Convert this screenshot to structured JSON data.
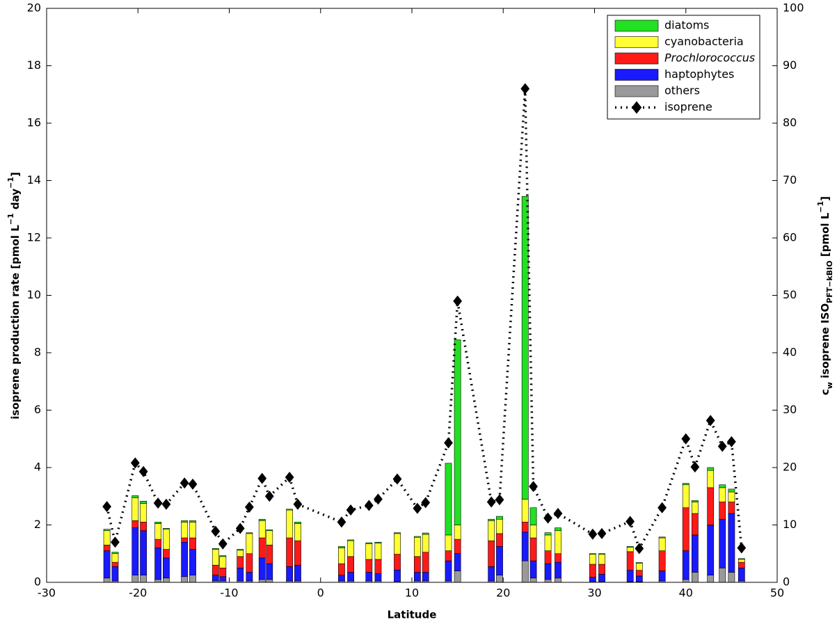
{
  "chart_data": {
    "type": "bar",
    "stacked": true,
    "xlabel": "Latitude",
    "ylabel": [
      "isoprene production rate [pmol L",
      "−1",
      " day",
      "−1",
      "]"
    ],
    "y2label": [
      "c",
      "w",
      " isoprene ISO",
      "PFT−kBIO",
      "   [pmol L",
      "−1",
      "]"
    ],
    "xlim": [
      -30,
      50
    ],
    "xticks": [
      -30,
      -20,
      -10,
      0,
      10,
      20,
      30,
      40,
      50
    ],
    "ylim": [
      0,
      20
    ],
    "yticks": [
      0,
      2,
      4,
      6,
      8,
      10,
      12,
      14,
      16,
      18,
      20
    ],
    "y2lim": [
      0,
      100
    ],
    "y2ticks": [
      0,
      10,
      20,
      30,
      40,
      50,
      60,
      70,
      80,
      90,
      100
    ],
    "legend": "upper right",
    "x": [
      -23.4,
      -22.5,
      -20.3,
      -19.4,
      -17.8,
      -16.9,
      -14.9,
      -14.0,
      -11.5,
      -10.7,
      -8.8,
      -7.8,
      -6.4,
      -5.6,
      -3.4,
      -2.5,
      2.3,
      3.3,
      5.3,
      6.3,
      8.4,
      10.6,
      11.5,
      14.0,
      15.0,
      18.7,
      19.6,
      22.4,
      23.3,
      24.9,
      26.0,
      29.8,
      30.8,
      33.9,
      34.9,
      37.4,
      40.0,
      41.0,
      42.7,
      44.0,
      45.0,
      46.1
    ],
    "series": [
      {
        "name": "diatoms",
        "color": "#22e022",
        "values": [
          0.05,
          0.05,
          0.07,
          0.08,
          0.05,
          0.03,
          0.05,
          0.05,
          0.03,
          0.03,
          0.03,
          0.03,
          0.05,
          0.03,
          0.03,
          0.05,
          0.05,
          0.03,
          0.03,
          0.03,
          0.03,
          0.03,
          0.05,
          2.5,
          6.45,
          0.05,
          0.1,
          10.55,
          0.6,
          0.08,
          0.1,
          0.02,
          0.02,
          0.03,
          0.02,
          0.03,
          0.05,
          0.05,
          0.1,
          0.1,
          0.1,
          0.03
        ]
      },
      {
        "name": "cyanobacteria",
        "color": "#ffff33",
        "values": [
          0.5,
          0.3,
          0.8,
          0.65,
          0.55,
          0.7,
          0.55,
          0.55,
          0.55,
          0.4,
          0.22,
          0.7,
          0.6,
          0.5,
          0.97,
          0.6,
          0.55,
          0.55,
          0.55,
          0.57,
          0.72,
          0.67,
          0.62,
          0.55,
          0.5,
          0.7,
          0.5,
          0.8,
          0.45,
          0.55,
          0.8,
          0.35,
          0.35,
          0.15,
          0.25,
          0.45,
          0.8,
          0.4,
          0.6,
          0.5,
          0.35,
          0.1
        ]
      },
      {
        "name": "Prochlorococcus",
        "color": "#ff1a1a",
        "italic": true,
        "values": [
          0.2,
          0.15,
          0.25,
          0.3,
          0.3,
          0.3,
          0.15,
          0.4,
          0.35,
          0.3,
          0.4,
          0.65,
          0.7,
          0.65,
          1.0,
          0.85,
          0.4,
          0.55,
          0.45,
          0.5,
          0.55,
          0.55,
          0.7,
          0.35,
          0.5,
          0.9,
          0.45,
          0.35,
          0.8,
          0.45,
          0.3,
          0.45,
          0.35,
          0.65,
          0.2,
          0.7,
          1.5,
          0.75,
          1.3,
          0.6,
          0.4,
          0.2
        ]
      },
      {
        "name": "haptophytes",
        "color": "#1a1aff",
        "values": [
          0.95,
          0.5,
          1.65,
          1.55,
          1.1,
          0.7,
          1.2,
          0.9,
          0.2,
          0.15,
          0.45,
          0.3,
          0.75,
          0.55,
          0.5,
          0.55,
          0.2,
          0.3,
          0.3,
          0.25,
          0.4,
          0.3,
          0.3,
          0.7,
          0.6,
          0.5,
          1.0,
          1.0,
          0.6,
          0.55,
          0.55,
          0.15,
          0.25,
          0.4,
          0.2,
          0.35,
          1.0,
          1.3,
          1.75,
          1.7,
          2.05,
          0.45
        ]
      },
      {
        "name": "others",
        "color": "#999999",
        "values": [
          0.15,
          0.05,
          0.25,
          0.25,
          0.1,
          0.15,
          0.2,
          0.25,
          0.05,
          0.05,
          0.05,
          0.05,
          0.1,
          0.1,
          0.05,
          0.05,
          0.05,
          0.05,
          0.05,
          0.05,
          0.03,
          0.05,
          0.05,
          0.05,
          0.4,
          0.05,
          0.25,
          0.75,
          0.15,
          0.1,
          0.15,
          0.03,
          0.03,
          0.02,
          0.02,
          0.05,
          0.1,
          0.35,
          0.25,
          0.5,
          0.35,
          0.05
        ]
      },
      {
        "name": "isoprene",
        "type": "line",
        "axis": "y2",
        "color": "#000000",
        "values": [
          13.2,
          7,
          20.8,
          19.3,
          13.8,
          13.6,
          17.3,
          17.1,
          8.9,
          6.7,
          9.4,
          13.1,
          18.1,
          15,
          18.3,
          13.6,
          10.5,
          12.6,
          13.4,
          14.5,
          18,
          12.9,
          13.9,
          24.3,
          49,
          14,
          14.4,
          86,
          16.7,
          11.2,
          12,
          8.4,
          8.5,
          10.6,
          5.9,
          13,
          25,
          20.1,
          28.2,
          23.7,
          24.5,
          6
        ]
      }
    ]
  }
}
